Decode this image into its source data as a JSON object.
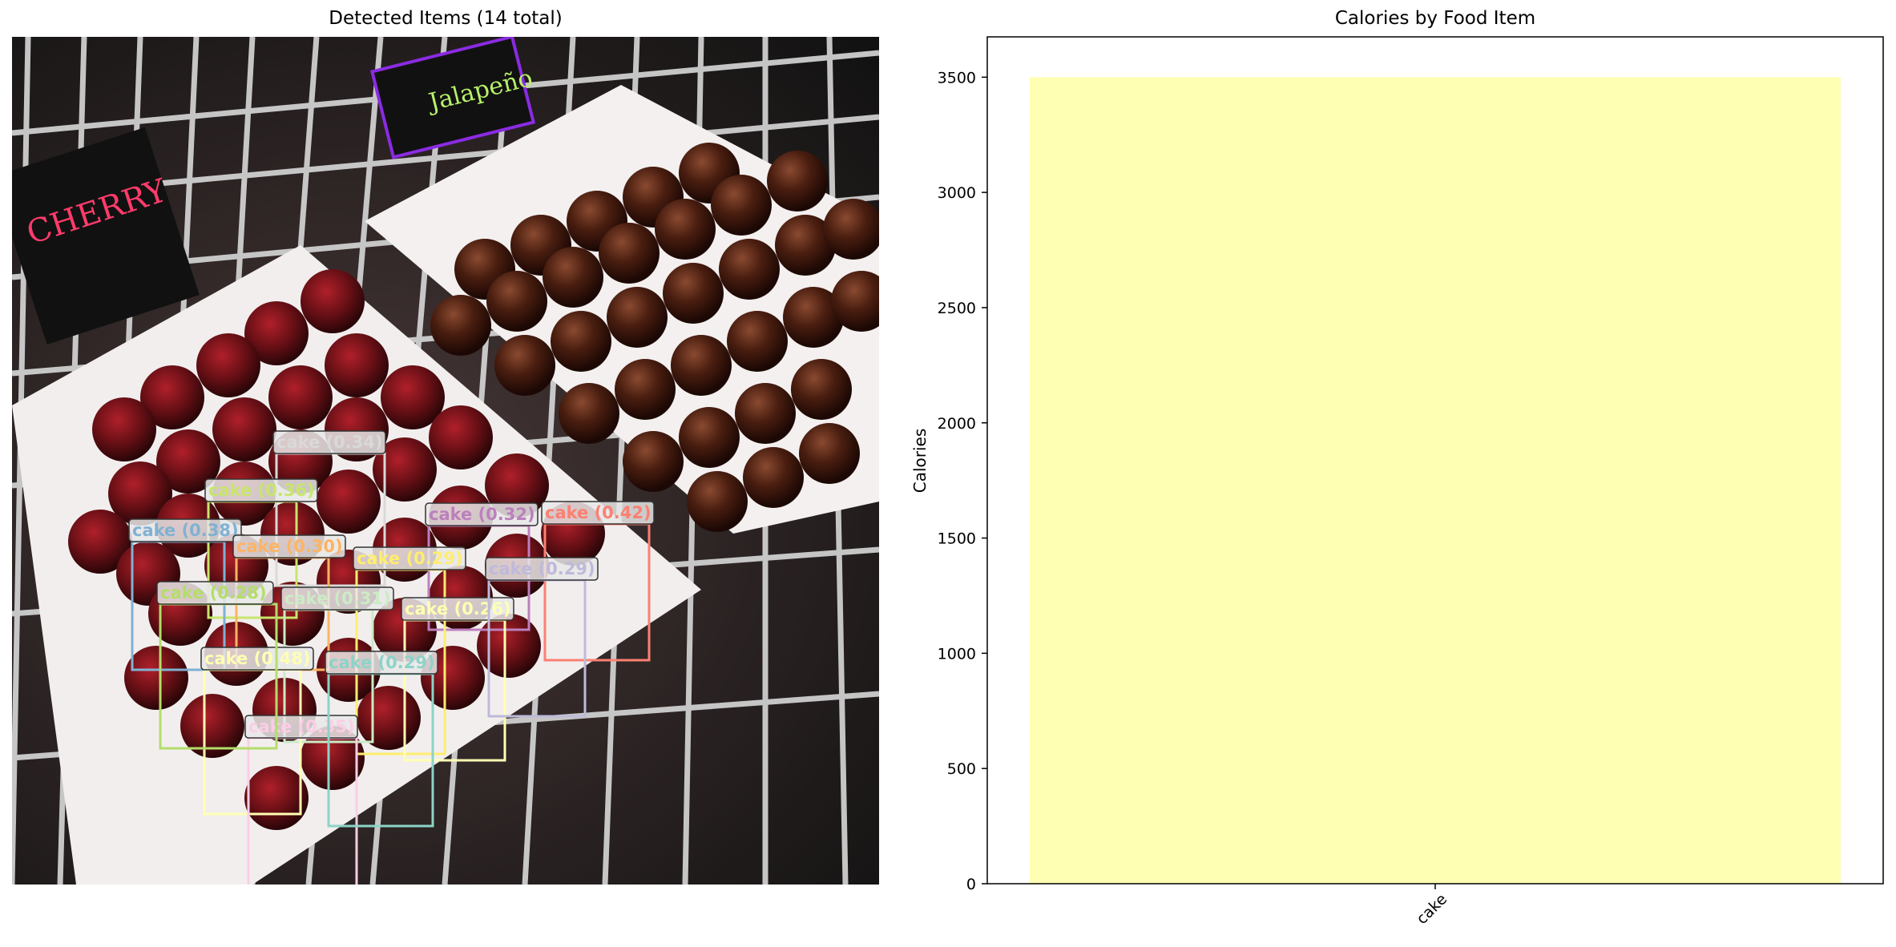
{
  "left_panel": {
    "title": "Detected Items (14 total)",
    "detections": [
      {
        "label": "cake (0.34)",
        "color": "#d9d9d9"
      },
      {
        "label": "cake (0.36)",
        "color": "#c7e66b"
      },
      {
        "label": "cake (0.38)",
        "color": "#80b1d3"
      },
      {
        "label": "cake (0.30)",
        "color": "#fdb462"
      },
      {
        "label": "cake (0.32)",
        "color": "#bc80bd"
      },
      {
        "label": "cake (0.42)",
        "color": "#fb8072"
      },
      {
        "label": "cake (0.29)",
        "color": "#ffed6f"
      },
      {
        "label": "cake (0.31)",
        "color": "#ccebc5"
      },
      {
        "label": "cake (0.26)",
        "color": "#ffffb3"
      },
      {
        "label": "cake (0.48)",
        "color": "#ffffb3"
      },
      {
        "label": "cake (0.35)",
        "color": "#fccde5"
      },
      {
        "label": "cake (0.29)",
        "color": "#8dd3c7"
      },
      {
        "label": "cake (0.28)",
        "color": "#b3de69"
      },
      {
        "label": "cake (0.29)",
        "color": "#bebada"
      }
    ]
  },
  "chart_data": {
    "type": "bar",
    "title": "Calories by Food Item",
    "xlabel": "",
    "ylabel": "Calories",
    "categories": [
      "cake"
    ],
    "values": [
      3500
    ],
    "bar_color": "#ffffb3",
    "ylim": [
      0,
      3675
    ],
    "yticks": [
      0,
      500,
      1000,
      1500,
      2000,
      2500,
      3000,
      3500
    ],
    "grid": false
  }
}
